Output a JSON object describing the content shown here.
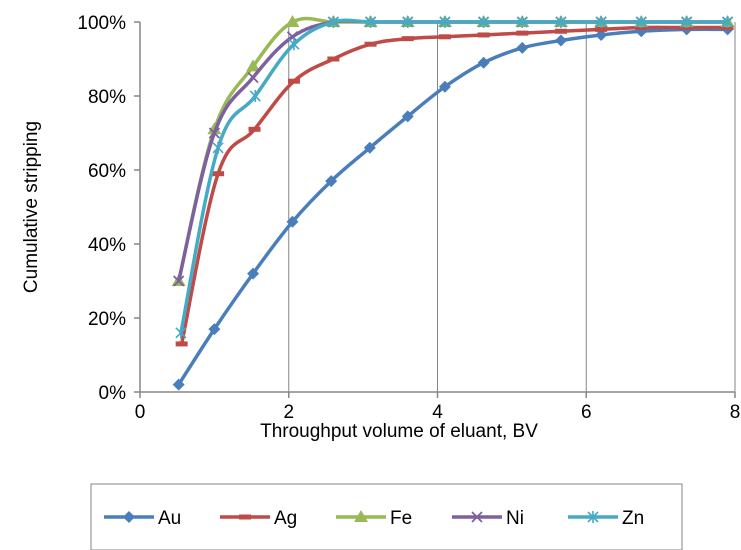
{
  "chart_data": {
    "type": "line",
    "title": "",
    "xlabel": "Throughput volume of eluant, BV",
    "ylabel": "Cumulative stripping",
    "xlim": [
      0,
      8
    ],
    "ylim": [
      0,
      100
    ],
    "x_ticks": [
      "0",
      "2",
      "4",
      "6",
      "8"
    ],
    "y_ticks": [
      "0%",
      "20%",
      "40%",
      "60%",
      "80%",
      "100%"
    ],
    "grid": "vertical",
    "legend_position": "bottom",
    "series": [
      {
        "name": "Au",
        "color": "#4a7ebb",
        "marker": "diamond",
        "points": [
          [
            0.52,
            2
          ],
          [
            1.0,
            17
          ],
          [
            1.52,
            32
          ],
          [
            2.05,
            46
          ],
          [
            2.57,
            57
          ],
          [
            3.09,
            66
          ],
          [
            3.6,
            74.5
          ],
          [
            4.1,
            82.5
          ],
          [
            4.62,
            89
          ],
          [
            5.14,
            93
          ],
          [
            5.66,
            95
          ],
          [
            6.2,
            96.5
          ],
          [
            6.74,
            97.5
          ],
          [
            7.35,
            98
          ],
          [
            7.9,
            98
          ]
        ]
      },
      {
        "name": "Ag",
        "color": "#be4b48",
        "marker": "dash",
        "points": [
          [
            0.56,
            13
          ],
          [
            1.05,
            59
          ],
          [
            1.54,
            71
          ],
          [
            2.07,
            84
          ],
          [
            2.6,
            90
          ],
          [
            3.1,
            94
          ],
          [
            3.6,
            95.5
          ],
          [
            4.1,
            96
          ],
          [
            4.62,
            96.5
          ],
          [
            5.14,
            97
          ],
          [
            5.66,
            97.5
          ],
          [
            6.2,
            98
          ],
          [
            6.74,
            98.5
          ],
          [
            7.35,
            98.5
          ],
          [
            7.9,
            98.5
          ]
        ]
      },
      {
        "name": "Fe",
        "color": "#98b954",
        "marker": "triangle",
        "points": [
          [
            0.52,
            30
          ],
          [
            1.0,
            71
          ],
          [
            1.52,
            88
          ],
          [
            2.05,
            100
          ],
          [
            2.6,
            100
          ],
          [
            3.1,
            100
          ],
          [
            3.6,
            100
          ],
          [
            4.1,
            100
          ],
          [
            4.62,
            100
          ],
          [
            5.14,
            100
          ],
          [
            5.66,
            100
          ],
          [
            6.2,
            100
          ],
          [
            6.74,
            100
          ],
          [
            7.35,
            100
          ],
          [
            7.9,
            100
          ]
        ]
      },
      {
        "name": "Ni",
        "color": "#7d60a0",
        "marker": "x",
        "points": [
          [
            0.52,
            30
          ],
          [
            1.0,
            70
          ],
          [
            1.52,
            85
          ],
          [
            2.05,
            96
          ],
          [
            2.6,
            100
          ],
          [
            3.1,
            100
          ],
          [
            3.6,
            100
          ],
          [
            4.1,
            100
          ],
          [
            4.62,
            100
          ],
          [
            5.14,
            100
          ],
          [
            5.66,
            100
          ],
          [
            6.2,
            100
          ],
          [
            6.74,
            100
          ],
          [
            7.35,
            100
          ],
          [
            7.9,
            100
          ]
        ]
      },
      {
        "name": "Zn",
        "color": "#46aac5",
        "marker": "asterisk",
        "points": [
          [
            0.55,
            16
          ],
          [
            1.05,
            66
          ],
          [
            1.55,
            80
          ],
          [
            2.07,
            94
          ],
          [
            2.6,
            100
          ],
          [
            3.1,
            100
          ],
          [
            3.6,
            100
          ],
          [
            4.1,
            100
          ],
          [
            4.62,
            100
          ],
          [
            5.14,
            100
          ],
          [
            5.66,
            100
          ],
          [
            6.2,
            100
          ],
          [
            6.74,
            100
          ],
          [
            7.35,
            100
          ],
          [
            7.9,
            100
          ]
        ]
      }
    ]
  }
}
